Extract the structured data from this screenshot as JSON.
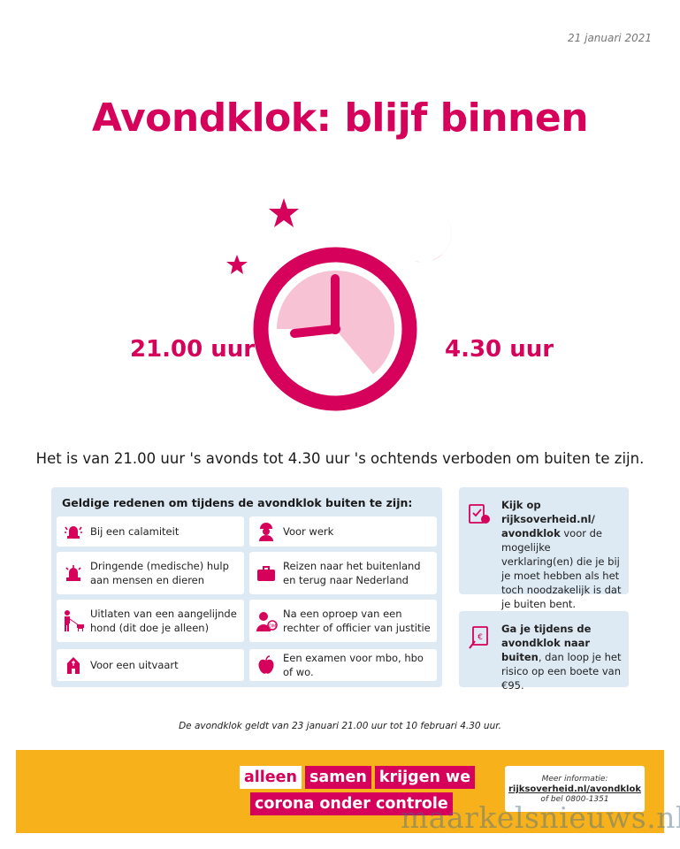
{
  "date": "21 januari 2021",
  "title": "Avondklok: blijf binnen",
  "clock": {
    "start_label": "21.00 uur",
    "end_label": "4.30 uur",
    "colors": {
      "primary": "#d5015a",
      "fill": "#f6c2d4"
    }
  },
  "sentence": "Het is van 21.00 uur 's avonds tot 4.30 uur 's ochtends verboden om buiten te zijn.",
  "reasons": {
    "title": "Geldige redenen om tijdens de avondklok buiten te zijn:",
    "items": [
      {
        "icon": "alarm-icon",
        "text": "Bij een calamiteit"
      },
      {
        "icon": "worker-icon",
        "text": "Voor werk"
      },
      {
        "icon": "siren-icon",
        "text": "Dringende (medische) hulp aan mensen en dieren"
      },
      {
        "icon": "suitcase-icon",
        "text": "Reizen naar het buitenland en terug naar Nederland"
      },
      {
        "icon": "dog-walk-icon",
        "text": "Uitlaten van een aangelijnde hond (dit doe je alleen)"
      },
      {
        "icon": "judge-icon",
        "text": "Na een oproep van een rechter of officier van justitie"
      },
      {
        "icon": "chapel-icon",
        "text": "Voor een uitvaart"
      },
      {
        "icon": "apple-icon",
        "text": "Een examen voor mbo, hbo of wo."
      }
    ]
  },
  "side_boxes": [
    {
      "icon": "document-check-icon",
      "bold": "Kijk op rijksoverheid.nl/ avondklok",
      "text": " voor de mogelijke verklaring(en) die je bij je moet hebben als het toch noodzakelijk is dat je buiten bent."
    },
    {
      "icon": "fine-icon",
      "bold": "Ga je tijdens de avondklok naar buiten",
      "text": ", dan loop je het risico op een boete van €95."
    }
  ],
  "footnote": "De avondklok geldt van 23 januari 21.00 uur tot 10 februari 4.30 uur.",
  "banner": {
    "slogan_line1": [
      "alleen",
      "samen",
      "krijgen we"
    ],
    "slogan_line2": [
      "corona onder controle"
    ],
    "info_line1": "Meer informatie:",
    "info_line2": "rijksoverheid.nl/avondklok",
    "info_line3": "of bel 0800-1351",
    "colors": {
      "background": "#f7b21b"
    }
  },
  "watermark": "maarkelsnieuws.nl"
}
